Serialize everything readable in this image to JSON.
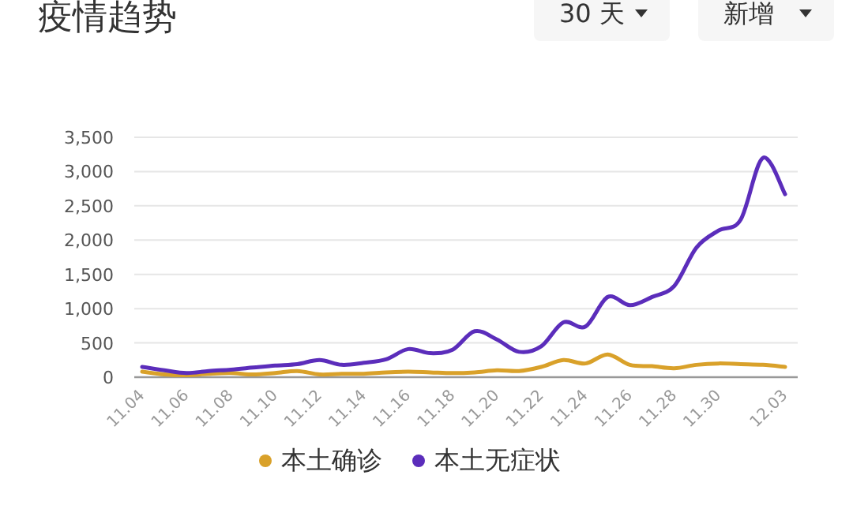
{
  "chart_data": {
    "type": "line",
    "title": "疫情趋势",
    "annotations": [
      "30 天",
      "新增"
    ],
    "categories": [
      "11.04",
      null,
      "11.06",
      null,
      "11.08",
      null,
      "11.10",
      null,
      "11.12",
      null,
      "11.14",
      null,
      "11.16",
      null,
      "11.18",
      null,
      "11.20",
      null,
      "11.22",
      null,
      "11.24",
      null,
      "11.26",
      null,
      "11.28",
      null,
      "11.30",
      null,
      null,
      "12.03"
    ],
    "series": [
      {
        "name": "本土确诊",
        "color": "#d9a12a",
        "values": [
          80,
          40,
          30,
          50,
          60,
          40,
          60,
          90,
          40,
          50,
          50,
          70,
          80,
          70,
          60,
          70,
          100,
          90,
          150,
          250,
          200,
          330,
          180,
          160,
          130,
          180,
          200,
          190,
          180,
          150
        ]
      },
      {
        "name": "本土无症状",
        "color": "#5b2dbb",
        "values": [
          150,
          100,
          60,
          90,
          110,
          140,
          170,
          190,
          250,
          180,
          210,
          260,
          410,
          350,
          400,
          670,
          550,
          370,
          450,
          800,
          740,
          1170,
          1050,
          1170,
          1330,
          1890,
          2140,
          2300,
          3200,
          2670
        ]
      }
    ],
    "ylim": [
      0,
      3500
    ],
    "yticks": [
      0,
      500,
      {
        "value": 1000,
        "label": "1,000"
      },
      {
        "value": 1500,
        "label": "1,500"
      },
      {
        "value": 2000,
        "label": "2,000"
      },
      {
        "value": 2500,
        "label": "2,500"
      },
      {
        "value": 3000,
        "label": "3,000"
      },
      {
        "value": 3500,
        "label": "3,500"
      }
    ],
    "grid": "y",
    "legend": "bottom",
    "marker": "none"
  }
}
